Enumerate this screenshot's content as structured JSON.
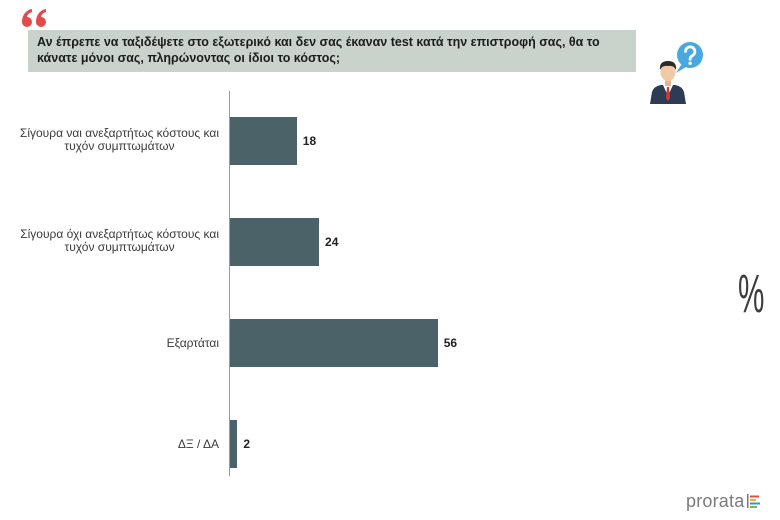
{
  "header": {
    "quote_icon": "quote-icon",
    "person_icon": "businessman-question-icon"
  },
  "colors": {
    "quote": "#e24b4b",
    "question_box": "#c9d3cb",
    "question_bubble": "#4aa8e0"
  },
  "chart_data": {
    "type": "bar",
    "orientation": "horizontal",
    "title": "Αν έπρεπε να ταξιδέψετε στο εξωτερικό και δεν σας έκαναν test κατά την επιστροφή σας, θα το\nκάνατε μόνοι σας, πληρώνοντας οι ίδιοι το κόστος;",
    "categories": [
      "Σίγουρα ναι ανεξαρτήτως κόστους και\nτυχόν συμπτωμάτων",
      "Σίγουρα όχι ανεξαρτήτως κόστους και\nτυχόν συμπτωμάτων",
      "Εξαρτάται",
      "ΔΞ / ΔΑ"
    ],
    "values": [
      18,
      24,
      56,
      2
    ],
    "unit": "%",
    "xlim": [
      0,
      100
    ],
    "grid": false,
    "legend": "none",
    "data_labels": "outside-end",
    "bar_color": "#4b6268"
  },
  "brand": {
    "logo_text": "prorata",
    "logo_colors": [
      "#e94e3c",
      "#f5b324",
      "#3b8fd9",
      "#6cbf4a"
    ]
  }
}
